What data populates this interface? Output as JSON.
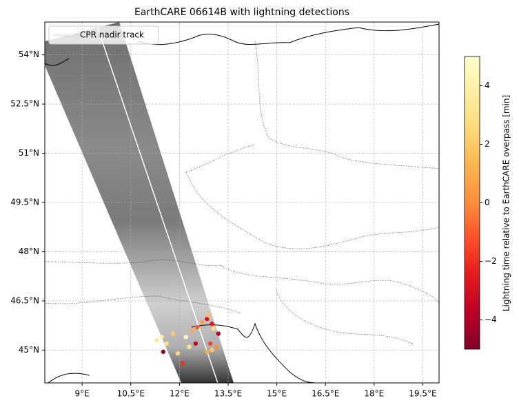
{
  "chart_data": {
    "type": "map",
    "title": "EarthCARE 06614B with lightning detections",
    "xlim": [
      7.85,
      20.0
    ],
    "ylim": [
      44.0,
      55.0
    ],
    "xticks": [
      {
        "value": 9,
        "label": "9°E"
      },
      {
        "value": 10.5,
        "label": "10.5°E"
      },
      {
        "value": 12,
        "label": "12°E"
      },
      {
        "value": 13.5,
        "label": "13.5°E"
      },
      {
        "value": 15,
        "label": "15°E"
      },
      {
        "value": 16.5,
        "label": "16.5°E"
      },
      {
        "value": 18,
        "label": "18°E"
      },
      {
        "value": 19.5,
        "label": "19.5°E"
      }
    ],
    "yticks": [
      {
        "value": 54,
        "label": "54°N"
      },
      {
        "value": 52.5,
        "label": "52.5°N"
      },
      {
        "value": 51,
        "label": "51°N"
      },
      {
        "value": 49.5,
        "label": "49.5°N"
      },
      {
        "value": 48,
        "label": "48°N"
      },
      {
        "value": 46.5,
        "label": "46.5°N"
      },
      {
        "value": 45,
        "label": "45°N"
      }
    ],
    "grid": true,
    "legend": "upper left",
    "track": {
      "name": "CPR nadir track",
      "color": "#ffffff",
      "x": [
        9.42,
        13.18
      ],
      "y": [
        55.0,
        44.0
      ]
    },
    "lightning": {
      "x": [
        11.3,
        11.45,
        11.6,
        11.5,
        11.95,
        12.1,
        12.2,
        12.4,
        12.55,
        12.7,
        12.85,
        13.0,
        12.9,
        13.05,
        13.2,
        13.0,
        12.85,
        12.95,
        13.15,
        12.5,
        11.8,
        12.3
      ],
      "y": [
        45.3,
        45.4,
        45.2,
        44.95,
        44.9,
        44.6,
        45.4,
        45.6,
        45.7,
        45.85,
        45.95,
        45.8,
        46.05,
        45.65,
        45.5,
        45.0,
        44.95,
        45.2,
        45.1,
        45.2,
        45.5,
        45.1
      ],
      "values": [
        3.5,
        4,
        3,
        -4.5,
        2.5,
        -2,
        4.5,
        1,
        -1,
        0.5,
        -3,
        -2.5,
        1.5,
        3,
        -4,
        2,
        1,
        -1.5,
        0,
        -3.5,
        2,
        3.5
      ]
    },
    "colorbar": {
      "label": "Lightning time relative to EarthCARE overpass [min]",
      "lim": [
        -5,
        5
      ],
      "ticks": [
        {
          "value": -4,
          "label": "−4"
        },
        {
          "value": -2,
          "label": "−2"
        },
        0,
        2,
        4
      ],
      "colors": [
        "#800026",
        "#bd0026",
        "#e31a1c",
        "#fc4e2a",
        "#fd8d3c",
        "#feb24c",
        "#fed976",
        "#ffeda0",
        "#ffffcc"
      ]
    }
  }
}
